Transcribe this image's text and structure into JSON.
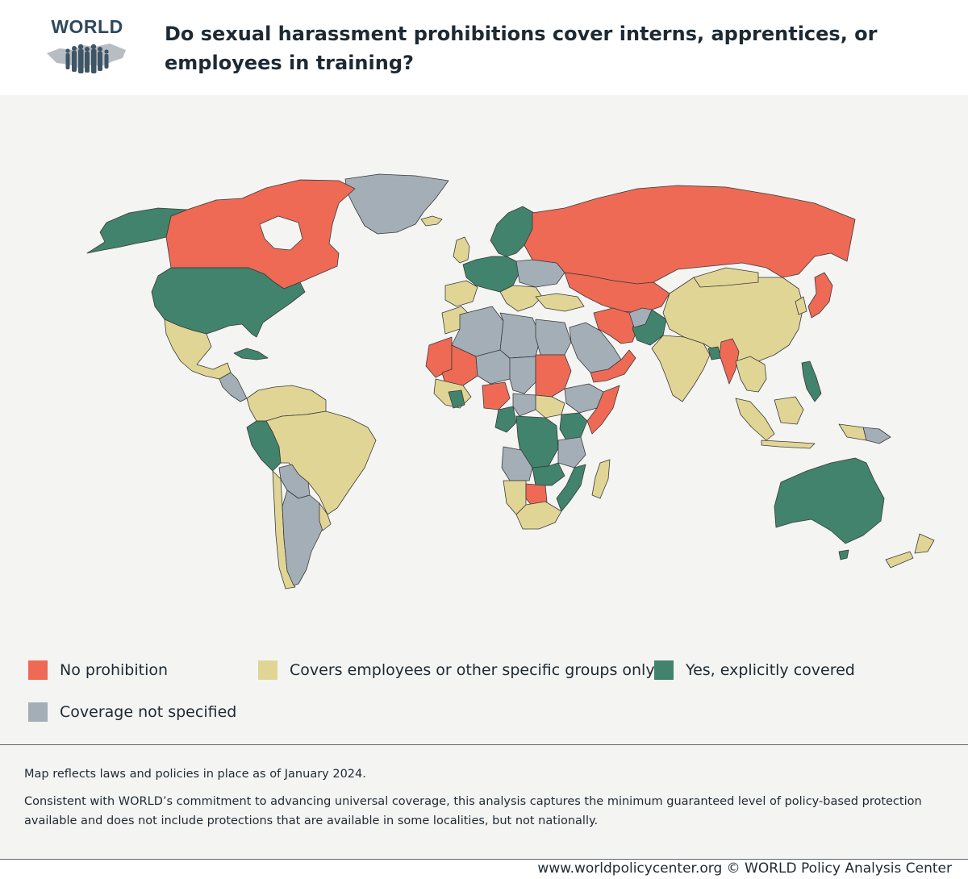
{
  "header": {
    "logo_text": "WORLD",
    "title": "Do sexual harassment prohibitions cover interns, apprentices, or employees in training?"
  },
  "map": {
    "type": "choropleth world map",
    "categories": [
      {
        "key": "none",
        "label": "No prohibition",
        "color": "#ee6a55"
      },
      {
        "key": "employees",
        "label": "Covers employees or other specific groups only",
        "color": "#e1d596"
      },
      {
        "key": "yes",
        "label": "Yes, explicitly covered",
        "color": "#41836d"
      },
      {
        "key": "unspecified",
        "label": "Coverage not specified",
        "color": "#a4aeb7"
      }
    ],
    "regions": [
      {
        "name": "Canada",
        "category": "none"
      },
      {
        "name": "Alaska (United States)",
        "category": "yes"
      },
      {
        "name": "United States",
        "category": "yes"
      },
      {
        "name": "Mexico",
        "category": "employees"
      },
      {
        "name": "Cuba",
        "category": "yes"
      },
      {
        "name": "Greenland",
        "category": "unspecified"
      },
      {
        "name": "Brazil",
        "category": "employees"
      },
      {
        "name": "Peru",
        "category": "yes"
      },
      {
        "name": "Argentina",
        "category": "unspecified"
      },
      {
        "name": "Colombia",
        "category": "employees"
      },
      {
        "name": "Russia",
        "category": "none"
      },
      {
        "name": "China",
        "category": "employees"
      },
      {
        "name": "India",
        "category": "employees"
      },
      {
        "name": "Australia",
        "category": "yes"
      },
      {
        "name": "New Zealand",
        "category": "employees"
      },
      {
        "name": "Saudi Arabia",
        "category": "unspecified"
      },
      {
        "name": "Iran",
        "category": "none"
      },
      {
        "name": "Pakistan",
        "category": "yes"
      },
      {
        "name": "Japan",
        "category": "none"
      },
      {
        "name": "Philippines",
        "category": "yes"
      },
      {
        "name": "Indonesia",
        "category": "employees"
      },
      {
        "name": "Myanmar",
        "category": "none"
      },
      {
        "name": "Algeria",
        "category": "unspecified"
      },
      {
        "name": "Libya",
        "category": "unspecified"
      },
      {
        "name": "Mali",
        "category": "none"
      },
      {
        "name": "Sudan",
        "category": "none"
      },
      {
        "name": "Nigeria",
        "category": "none"
      },
      {
        "name": "DR Congo",
        "category": "yes"
      },
      {
        "name": "Angola",
        "category": "unspecified"
      },
      {
        "name": "Tanzania",
        "category": "unspecified"
      },
      {
        "name": "Mozambique",
        "category": "yes"
      },
      {
        "name": "South Africa",
        "category": "employees"
      },
      {
        "name": "Botswana",
        "category": "none"
      },
      {
        "name": "Madagascar",
        "category": "employees"
      },
      {
        "name": "Somalia",
        "category": "none"
      },
      {
        "name": "Ethiopia",
        "category": "unspecified"
      },
      {
        "name": "Kenya",
        "category": "yes"
      },
      {
        "name": "Scandinavia",
        "category": "yes"
      },
      {
        "name": "Western Europe",
        "category": "yes"
      },
      {
        "name": "Spain",
        "category": "employees"
      },
      {
        "name": "Ukraine",
        "category": "unspecified"
      }
    ]
  },
  "notes": {
    "date_note": "Map reflects laws and policies in place as of January 2024.",
    "coverage_note": "Consistent with WORLD’s commitment to advancing universal coverage, this analysis captures the minimum guaranteed level of policy-based protection available and does not include protections that are available in some localities, but not nationally."
  },
  "footer": {
    "credit": "www.worldpolicycenter.org © WORLD Policy Analysis Center"
  }
}
